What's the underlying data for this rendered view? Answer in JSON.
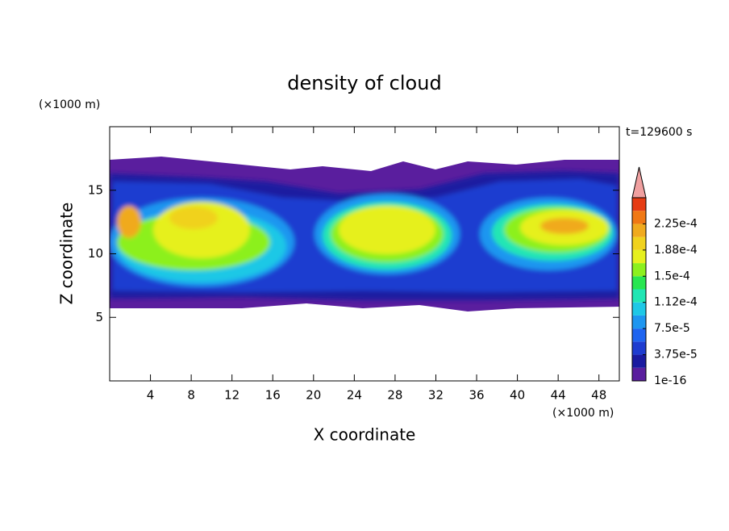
{
  "chart_data": {
    "type": "contour",
    "title": "density of cloud",
    "x_label": "X coordinate",
    "y_label": "Z coordinate",
    "x_unit": "(×1000 m)",
    "y_unit": "(×1000 m)",
    "time_label": "t=129600 s",
    "xlim": [
      0,
      50
    ],
    "xticks": [
      4,
      8,
      12,
      16,
      20,
      24,
      28,
      32,
      36,
      40,
      44,
      48
    ],
    "ylim": [
      0,
      20
    ],
    "yticks": [
      5,
      10,
      15
    ],
    "colorbar": {
      "clim": [
        0,
        0.0002625
      ],
      "colors": [
        "#5a1e9e",
        "#1a1aa0",
        "#1e3cd0",
        "#1e64f0",
        "#1e96f0",
        "#1ec8e6",
        "#20e6b4",
        "#28e650",
        "#8cf01e",
        "#e6f01e",
        "#f0d21e",
        "#f0aa1e",
        "#f07814",
        "#e63c14"
      ],
      "extend_color": "#f0a0a0",
      "ticks": [
        {
          "value": 1e-16,
          "label": "1e-16"
        },
        {
          "value": 3.75e-05,
          "label": "3.75e-5"
        },
        {
          "value": 7.5e-05,
          "label": "7.5e-5"
        },
        {
          "value": 0.0001125,
          "label": "1.12e-4"
        },
        {
          "value": 0.00015,
          "label": "1.5e-4"
        },
        {
          "value": 0.0001875,
          "label": "1.88e-4"
        },
        {
          "value": 0.000225,
          "label": "2.25e-4"
        }
      ]
    }
  }
}
